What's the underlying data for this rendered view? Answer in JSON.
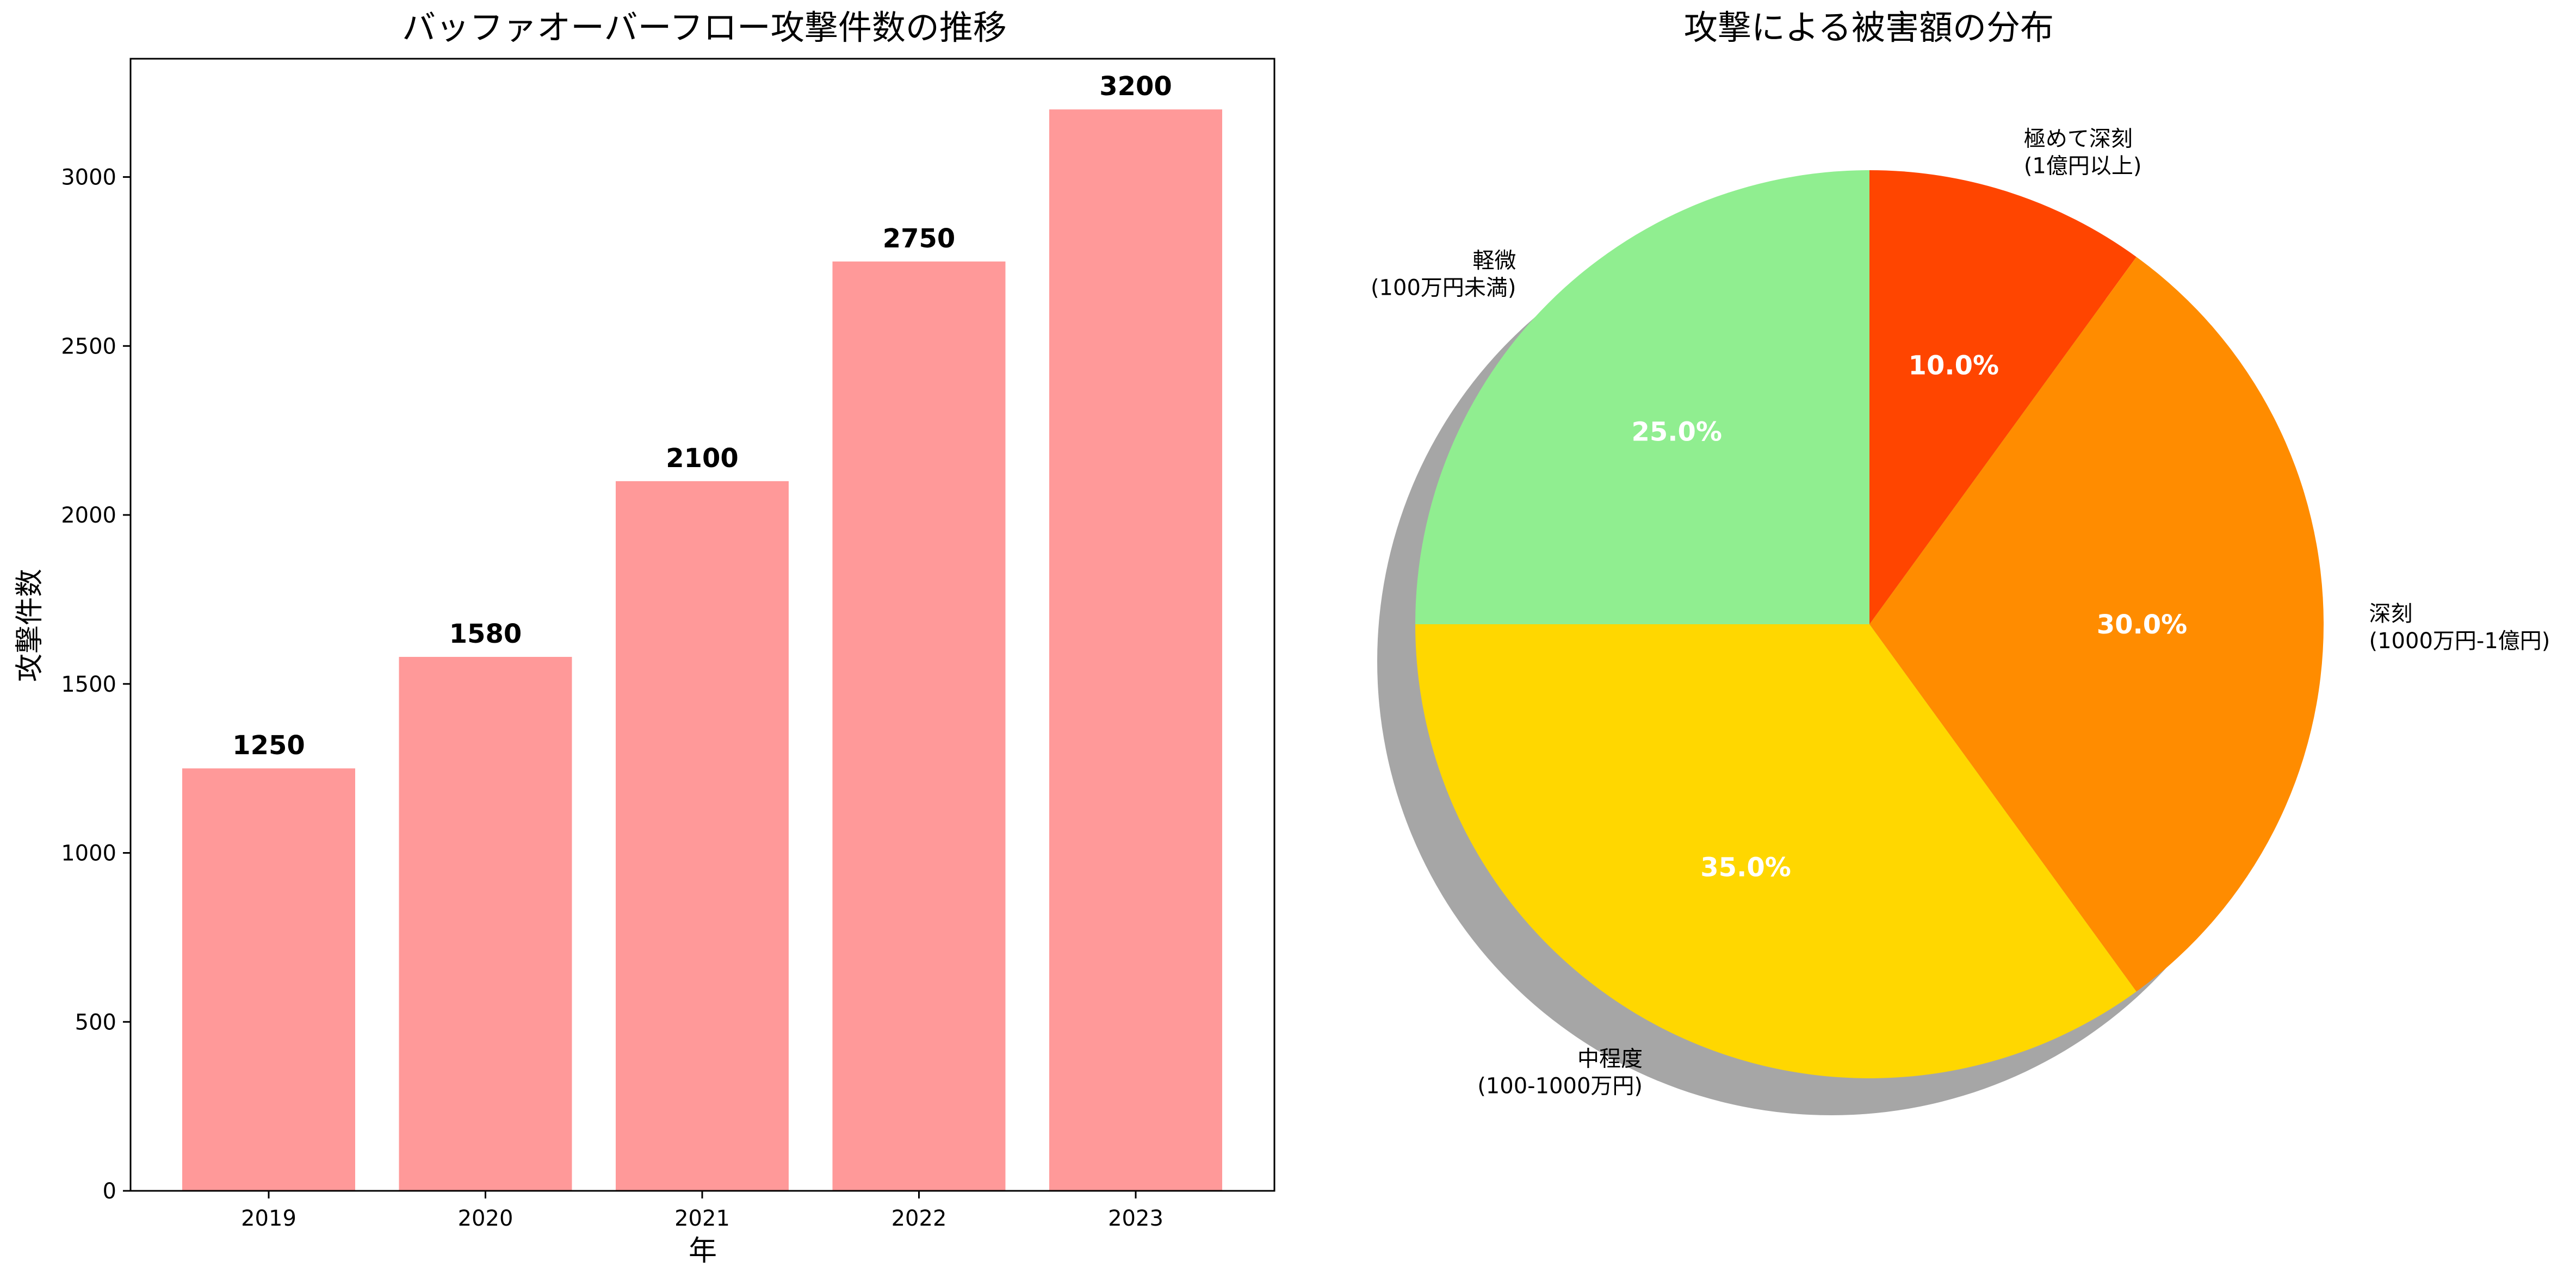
{
  "chart_data": [
    {
      "type": "bar",
      "title": "バッファオーバーフロー攻撃件数の推移",
      "xlabel": "年",
      "ylabel": "攻撃件数",
      "categories": [
        "2019",
        "2020",
        "2021",
        "2022",
        "2023"
      ],
      "values": [
        1250,
        1580,
        2100,
        2750,
        3200
      ],
      "value_labels": [
        "1250",
        "1580",
        "2100",
        "2750",
        "3200"
      ],
      "ylim": [
        0,
        3350
      ],
      "yticks": [
        0,
        500,
        1000,
        1500,
        2000,
        2500,
        3000
      ],
      "ytick_labels": [
        "0",
        "500",
        "1000",
        "1500",
        "2000",
        "2500",
        "3000"
      ],
      "bar_color": "#ff9999",
      "grid": false
    },
    {
      "type": "pie",
      "title": "攻撃による被害額の分布",
      "start": "top",
      "direction": "clockwise",
      "shadow": true,
      "slices": [
        {
          "label_line1": "極めて深刻",
          "label_line2": "(1億円以上)",
          "value": 10.0,
          "pct_label": "10.0%",
          "color": "#ff4500"
        },
        {
          "label_line1": "深刻",
          "label_line2": "(1000万円-1億円)",
          "value": 30.0,
          "pct_label": "30.0%",
          "color": "#ff8c00"
        },
        {
          "label_line1": "中程度",
          "label_line2": "(100-1000万円)",
          "value": 35.0,
          "pct_label": "35.0%",
          "color": "#ffd700"
        },
        {
          "label_line1": "軽微",
          "label_line2": "(100万円未満)",
          "value": 25.0,
          "pct_label": "25.0%",
          "color": "#90ee90"
        }
      ]
    }
  ]
}
